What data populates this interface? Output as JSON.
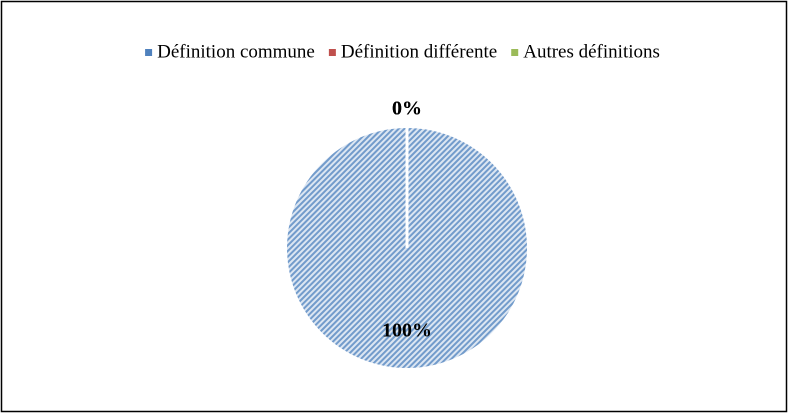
{
  "chart_data": {
    "type": "pie",
    "categories": [
      "Définition commune",
      "Définition différente",
      "Autres définitions"
    ],
    "values": [
      100,
      0,
      0
    ],
    "value_labels": [
      "100%",
      "0%",
      "0%"
    ],
    "colors": [
      "#4f81bd",
      "#c0504d",
      "#9bbb59"
    ],
    "legend": "top"
  }
}
